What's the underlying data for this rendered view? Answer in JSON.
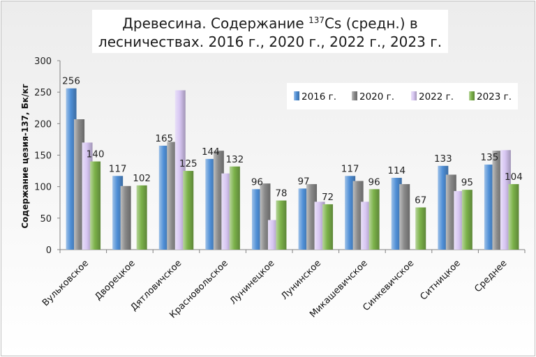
{
  "chart_data": {
    "type": "bar",
    "title_main": "Древесина. Содержание ",
    "title_sup": "137",
    "title_rest": "Cs (средн.) в лесничествах. 2016 г., 2020 г., 2022 г., 2023 г.",
    "ylabel": "Содержание цезия-137, Бк/кг",
    "ylim": [
      0,
      300
    ],
    "yticks": [
      0,
      50,
      100,
      150,
      200,
      250,
      300
    ],
    "grid": false,
    "legend_position": "top-right",
    "categories": [
      "Вульковское",
      "Дворецкое",
      "Дятловичское",
      "Красновольское",
      "Лунинецкое",
      "Лунинское",
      "Микашевичское",
      "Синкевичское",
      "Ситницкое",
      "Среднее"
    ],
    "series": [
      {
        "name": "2016 г.",
        "color": "#4f8fd6",
        "values": [
          256,
          117,
          165,
          144,
          96,
          97,
          117,
          114,
          133,
          135
        ],
        "labels": [
          "256",
          "117",
          "165",
          "144",
          "96",
          "97",
          "117",
          "114",
          "133",
          "135"
        ]
      },
      {
        "name": "2020 г.",
        "color": "#8a8a8a",
        "values": [
          207,
          101,
          171,
          157,
          105,
          104,
          109,
          104,
          119,
          157
        ],
        "labels": [
          "",
          "",
          "",
          "",
          "",
          "",
          "",
          "",
          "",
          ""
        ]
      },
      {
        "name": "2022 г.",
        "color": "#d7c6f2",
        "values": [
          170,
          0,
          253,
          121,
          47,
          76,
          76,
          0,
          93,
          158
        ],
        "labels": [
          "",
          "",
          "",
          "",
          "",
          "",
          "",
          "",
          "",
          ""
        ]
      },
      {
        "name": "2023 г.",
        "color": "#7cb24a",
        "values": [
          140,
          102,
          125,
          132,
          78,
          72,
          96,
          67,
          95,
          104
        ],
        "labels": [
          "140",
          "102",
          "125",
          "132",
          "78",
          "72",
          "96",
          "67",
          "95",
          "104"
        ]
      }
    ]
  }
}
